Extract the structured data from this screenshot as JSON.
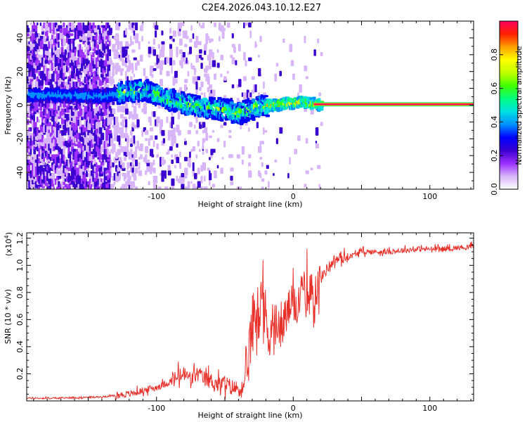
{
  "title": "C2E4.2026.043.10.12.E27",
  "chart_data": [
    {
      "type": "heatmap",
      "title": "C2E4.2026.043.10.12.E27",
      "xlabel": "Height of straight line (km)",
      "ylabel": "Frequency (Hz)",
      "xlim": [
        -195,
        132
      ],
      "ylim": [
        -50,
        50
      ],
      "xticks": [
        -100,
        0,
        100
      ],
      "yticks": [
        -40,
        -20,
        0,
        20,
        40
      ],
      "colorbar": {
        "label": "Normalized spectral amplitude",
        "range": [
          0,
          1
        ],
        "ticks": [
          0.0,
          0.2,
          0.4,
          0.6,
          0.8
        ],
        "tick_labels": [
          "0.0",
          "0.2",
          "0.4",
          "0.6",
          "0.8"
        ],
        "colors": [
          "#ffffff",
          "#d8b4f8",
          "#9b30ff",
          "#3a00d0",
          "#0000ff",
          "#0090ff",
          "#00e0e0",
          "#00ff80",
          "#40ff00",
          "#c0ff00",
          "#ffff00",
          "#ffa000",
          "#ff2000",
          "#ff0060"
        ]
      },
      "ridge": [
        {
          "x": -185,
          "y": 6
        },
        {
          "x": -160,
          "y": 6
        },
        {
          "x": -140,
          "y": 5
        },
        {
          "x": -125,
          "y": 8
        },
        {
          "x": -110,
          "y": 9
        },
        {
          "x": -100,
          "y": 6
        },
        {
          "x": -90,
          "y": 3
        },
        {
          "x": -80,
          "y": 1
        },
        {
          "x": -70,
          "y": -1
        },
        {
          "x": -60,
          "y": -2
        },
        {
          "x": -50,
          "y": -3
        },
        {
          "x": -42,
          "y": -5
        },
        {
          "x": -35,
          "y": -3
        },
        {
          "x": -25,
          "y": -1
        },
        {
          "x": -15,
          "y": 0
        },
        {
          "x": -5,
          "y": 1
        },
        {
          "x": 5,
          "y": 2
        },
        {
          "x": 15,
          "y": 0.5
        },
        {
          "x": 130,
          "y": 0.5
        }
      ]
    },
    {
      "type": "line",
      "xlabel": "Height of straight line (km)",
      "ylabel": "SNR (10 * v/v)",
      "y_multiplier": "(x10",
      "y_multiplier_exp": "4",
      "y_multiplier_close": ")",
      "xlim": [
        -195,
        132
      ],
      "ylim": [
        0,
        1.24
      ],
      "xticks": [
        -100,
        0,
        100
      ],
      "yticks": [
        0.2,
        0.4,
        0.6,
        0.8,
        1.0,
        1.2
      ],
      "ytick_labels": [
        "0.2",
        "0.4",
        "0.6",
        "0.8",
        "1.0",
        "1.2"
      ],
      "color": "#e8302a",
      "series": [
        {
          "name": "SNR",
          "x": [
            -195,
            -175,
            -155,
            -140,
            -130,
            -120,
            -112,
            -105,
            -100,
            -95,
            -90,
            -85,
            -80,
            -75,
            -70,
            -65,
            -60,
            -55,
            -50,
            -45,
            -40,
            -35,
            -32,
            -30,
            -28,
            -26,
            -24,
            -22,
            -20,
            -18,
            -15,
            -12,
            -10,
            -8,
            -5,
            -2,
            0,
            2,
            5,
            8,
            10,
            12,
            15,
            18,
            20,
            25,
            30,
            35,
            40,
            45,
            50,
            60,
            70,
            80,
            90,
            100,
            110,
            120,
            132
          ],
          "y": [
            0.02,
            0.02,
            0.025,
            0.03,
            0.04,
            0.05,
            0.07,
            0.09,
            0.1,
            0.12,
            0.14,
            0.17,
            0.2,
            0.16,
            0.2,
            0.16,
            0.15,
            0.12,
            0.13,
            0.1,
            0.09,
            0.1,
            0.4,
            0.55,
            0.7,
            0.65,
            0.78,
            0.6,
            0.62,
            0.55,
            0.55,
            0.5,
            0.5,
            0.56,
            0.62,
            0.72,
            0.68,
            0.72,
            0.74,
            0.8,
            0.66,
            0.78,
            0.82,
            0.85,
            0.9,
            0.98,
            1.04,
            1.05,
            1.06,
            1.08,
            1.1,
            1.1,
            1.1,
            1.11,
            1.12,
            1.12,
            1.12,
            1.13,
            1.14
          ]
        }
      ]
    }
  ]
}
